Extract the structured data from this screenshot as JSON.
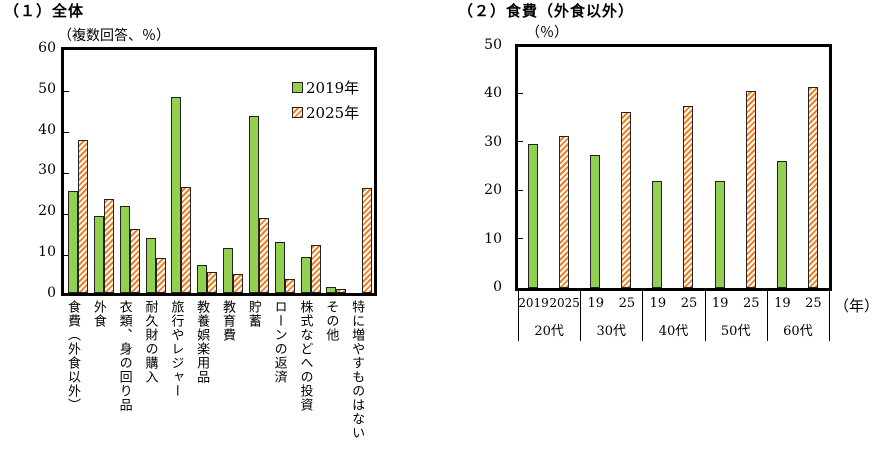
{
  "chart_data": [
    {
      "type": "bar",
      "title": "（１）全体",
      "ylabel": "（複数回答、％）",
      "xlabel": "",
      "ylim": [
        0,
        60
      ],
      "yticks": [
        0,
        10,
        20,
        30,
        40,
        50,
        60
      ],
      "legend_position": "upper right inside",
      "categories": [
        "食費（外食以外）",
        "外食",
        "衣類、身の回り品",
        "耐久財の購入",
        "旅行やレジャー",
        "教養娯楽用品",
        "教育費",
        "貯蓄",
        "ローンの返済",
        "株式などへの投資",
        "その他",
        "特に増やすものはない"
      ],
      "series": [
        {
          "name": "2019年",
          "color": "#92d050",
          "values": [
            25.2,
            19.1,
            21.6,
            13.5,
            48.3,
            6.9,
            11.0,
            43.6,
            12.7,
            8.8,
            1.5,
            null
          ]
        },
        {
          "name": "2025年",
          "color": "#f07f22",
          "values": [
            37.7,
            23.3,
            15.7,
            8.6,
            26.2,
            5.1,
            4.7,
            18.6,
            3.4,
            11.8,
            0.9,
            26.0
          ]
        }
      ]
    },
    {
      "type": "bar",
      "title": "（２）食費（外食以外）",
      "ylabel": "（％）",
      "xlabel": "（年）",
      "ylim": [
        0,
        50
      ],
      "yticks": [
        0,
        10,
        20,
        30,
        40,
        50
      ],
      "categories": [
        "20代",
        "30代",
        "40代",
        "50代",
        "60代"
      ],
      "series": [
        {
          "name": "2019",
          "color": "#92d050",
          "values": [
            29.8,
            27.5,
            22.3,
            22.3,
            26.4
          ]
        },
        {
          "name": "2025",
          "color": "#f07f22",
          "values": [
            31.6,
            36.6,
            37.8,
            40.9,
            41.7
          ]
        }
      ]
    }
  ],
  "left": {
    "title": "（１）全体",
    "unit": "（複数回答、％）",
    "yticks": [
      "60",
      "50",
      "40",
      "30",
      "20",
      "10",
      "0"
    ],
    "legend": [
      "2019年",
      "2025年"
    ],
    "labels": [
      "食費（外食以外）",
      "外食",
      "衣類、身の回り品",
      "耐久財の購入",
      "旅行やレジャー",
      "教養娯楽用品",
      "教育費",
      "貯蓄",
      "ローンの返済",
      "株式などへの投資",
      "その他",
      "特に増やすものはない"
    ]
  },
  "right": {
    "title": "（２）食費（外食以外）",
    "unit": "（％）",
    "yticks": [
      "50",
      "40",
      "30",
      "20",
      "10",
      "0"
    ],
    "years": [
      "2019",
      "2025",
      "19",
      "25",
      "19",
      "25",
      "19",
      "25",
      "19",
      "25"
    ],
    "ages": [
      "20代",
      "30代",
      "40代",
      "50代",
      "60代"
    ],
    "year_unit": "（年）"
  }
}
